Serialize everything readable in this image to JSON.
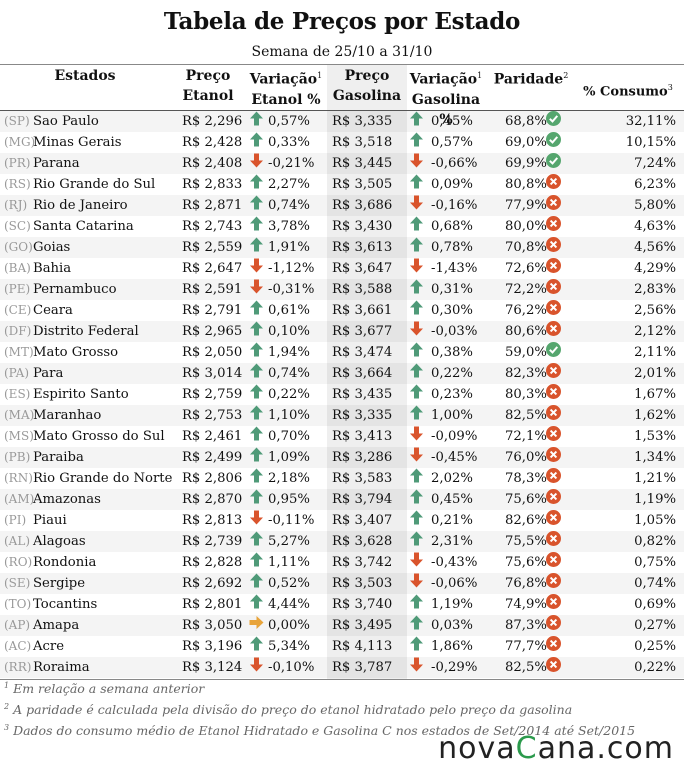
{
  "title": "Tabela de Preços por Estado",
  "subtitle": "Semana de 25/10 a 31/10",
  "headers": {
    "estados": "Estados",
    "preco_etanol_1": "Preço",
    "preco_etanol_2": "Etanol",
    "var_etanol_1": "Variação",
    "var_etanol_2": "Etanol %",
    "preco_gas_1": "Preço",
    "preco_gas_2": "Gasolina",
    "var_gas_1": "Variação",
    "var_gas_2": "Gasolina %",
    "paridade": "Paridade",
    "consumo": "% Consumo"
  },
  "rows": [
    {
      "uf": "(SP)",
      "estado": "Sao Paulo",
      "pe": "R$ 2,296",
      "ve": "0,57%",
      "de": "up",
      "pg": "R$ 3,335",
      "vg": "0,45%",
      "dg": "up",
      "par": "68,8%",
      "ok": true,
      "cons": "32,11%"
    },
    {
      "uf": "(MG)",
      "estado": "Minas Gerais",
      "pe": "R$ 2,428",
      "ve": "0,33%",
      "de": "up",
      "pg": "R$ 3,518",
      "vg": "0,57%",
      "dg": "up",
      "par": "69,0%",
      "ok": true,
      "cons": "10,15%"
    },
    {
      "uf": "(PR)",
      "estado": "Parana",
      "pe": "R$ 2,408",
      "ve": "-0,21%",
      "de": "down",
      "pg": "R$ 3,445",
      "vg": "-0,66%",
      "dg": "down",
      "par": "69,9%",
      "ok": true,
      "cons": "7,24%"
    },
    {
      "uf": "(RS)",
      "estado": "Rio Grande do Sul",
      "pe": "R$ 2,833",
      "ve": "2,27%",
      "de": "up",
      "pg": "R$ 3,505",
      "vg": "0,09%",
      "dg": "up",
      "par": "80,8%",
      "ok": false,
      "cons": "6,23%"
    },
    {
      "uf": "(RJ)",
      "estado": "Rio de Janeiro",
      "pe": "R$ 2,871",
      "ve": "0,74%",
      "de": "up",
      "pg": "R$ 3,686",
      "vg": "-0,16%",
      "dg": "down",
      "par": "77,9%",
      "ok": false,
      "cons": "5,80%"
    },
    {
      "uf": "(SC)",
      "estado": "Santa Catarina",
      "pe": "R$ 2,743",
      "ve": "3,78%",
      "de": "up",
      "pg": "R$ 3,430",
      "vg": "0,68%",
      "dg": "up",
      "par": "80,0%",
      "ok": false,
      "cons": "4,63%"
    },
    {
      "uf": "(GO)",
      "estado": "Goias",
      "pe": "R$ 2,559",
      "ve": "1,91%",
      "de": "up",
      "pg": "R$ 3,613",
      "vg": "0,78%",
      "dg": "up",
      "par": "70,8%",
      "ok": false,
      "cons": "4,56%"
    },
    {
      "uf": "(BA)",
      "estado": "Bahia",
      "pe": "R$ 2,647",
      "ve": "-1,12%",
      "de": "down",
      "pg": "R$ 3,647",
      "vg": "-1,43%",
      "dg": "down",
      "par": "72,6%",
      "ok": false,
      "cons": "4,29%"
    },
    {
      "uf": "(PE)",
      "estado": "Pernambuco",
      "pe": "R$ 2,591",
      "ve": "-0,31%",
      "de": "down",
      "pg": "R$ 3,588",
      "vg": "0,31%",
      "dg": "up",
      "par": "72,2%",
      "ok": false,
      "cons": "2,83%"
    },
    {
      "uf": "(CE)",
      "estado": "Ceara",
      "pe": "R$ 2,791",
      "ve": "0,61%",
      "de": "up",
      "pg": "R$ 3,661",
      "vg": "0,30%",
      "dg": "up",
      "par": "76,2%",
      "ok": false,
      "cons": "2,56%"
    },
    {
      "uf": "(DF)",
      "estado": "Distrito Federal",
      "pe": "R$ 2,965",
      "ve": "0,10%",
      "de": "up",
      "pg": "R$ 3,677",
      "vg": "-0,03%",
      "dg": "down",
      "par": "80,6%",
      "ok": false,
      "cons": "2,12%"
    },
    {
      "uf": "(MT)",
      "estado": "Mato Grosso",
      "pe": "R$ 2,050",
      "ve": "1,94%",
      "de": "up",
      "pg": "R$ 3,474",
      "vg": "0,38%",
      "dg": "up",
      "par": "59,0%",
      "ok": true,
      "cons": "2,11%"
    },
    {
      "uf": "(PA)",
      "estado": "Para",
      "pe": "R$ 3,014",
      "ve": "0,74%",
      "de": "up",
      "pg": "R$ 3,664",
      "vg": "0,22%",
      "dg": "up",
      "par": "82,3%",
      "ok": false,
      "cons": "2,01%"
    },
    {
      "uf": "(ES)",
      "estado": "Espirito Santo",
      "pe": "R$ 2,759",
      "ve": "0,22%",
      "de": "up",
      "pg": "R$ 3,435",
      "vg": "0,23%",
      "dg": "up",
      "par": "80,3%",
      "ok": false,
      "cons": "1,67%"
    },
    {
      "uf": "(MA)",
      "estado": "Maranhao",
      "pe": "R$ 2,753",
      "ve": "1,10%",
      "de": "up",
      "pg": "R$ 3,335",
      "vg": "1,00%",
      "dg": "up",
      "par": "82,5%",
      "ok": false,
      "cons": "1,62%"
    },
    {
      "uf": "(MS)",
      "estado": "Mato Grosso do Sul",
      "pe": "R$ 2,461",
      "ve": "0,70%",
      "de": "up",
      "pg": "R$ 3,413",
      "vg": "-0,09%",
      "dg": "down",
      "par": "72,1%",
      "ok": false,
      "cons": "1,53%"
    },
    {
      "uf": "(PB)",
      "estado": "Paraiba",
      "pe": "R$ 2,499",
      "ve": "1,09%",
      "de": "up",
      "pg": "R$ 3,286",
      "vg": "-0,45%",
      "dg": "down",
      "par": "76,0%",
      "ok": false,
      "cons": "1,34%"
    },
    {
      "uf": "(RN)",
      "estado": "Rio Grande do Norte",
      "pe": "R$ 2,806",
      "ve": "2,18%",
      "de": "up",
      "pg": "R$ 3,583",
      "vg": "2,02%",
      "dg": "up",
      "par": "78,3%",
      "ok": false,
      "cons": "1,21%"
    },
    {
      "uf": "(AM)",
      "estado": "Amazonas",
      "pe": "R$ 2,870",
      "ve": "0,95%",
      "de": "up",
      "pg": "R$ 3,794",
      "vg": "0,45%",
      "dg": "up",
      "par": "75,6%",
      "ok": false,
      "cons": "1,19%"
    },
    {
      "uf": "(PI)",
      "estado": "Piaui",
      "pe": "R$ 2,813",
      "ve": "-0,11%",
      "de": "down",
      "pg": "R$ 3,407",
      "vg": "0,21%",
      "dg": "up",
      "par": "82,6%",
      "ok": false,
      "cons": "1,05%"
    },
    {
      "uf": "(AL)",
      "estado": "Alagoas",
      "pe": "R$ 2,739",
      "ve": "5,27%",
      "de": "up",
      "pg": "R$ 3,628",
      "vg": "2,31%",
      "dg": "up",
      "par": "75,5%",
      "ok": false,
      "cons": "0,82%"
    },
    {
      "uf": "(RO)",
      "estado": "Rondonia",
      "pe": "R$ 2,828",
      "ve": "1,11%",
      "de": "up",
      "pg": "R$ 3,742",
      "vg": "-0,43%",
      "dg": "down",
      "par": "75,6%",
      "ok": false,
      "cons": "0,75%"
    },
    {
      "uf": "(SE)",
      "estado": "Sergipe",
      "pe": "R$ 2,692",
      "ve": "0,52%",
      "de": "up",
      "pg": "R$ 3,503",
      "vg": "-0,06%",
      "dg": "down",
      "par": "76,8%",
      "ok": false,
      "cons": "0,74%"
    },
    {
      "uf": "(TO)",
      "estado": "Tocantins",
      "pe": "R$ 2,801",
      "ve": "4,44%",
      "de": "up",
      "pg": "R$ 3,740",
      "vg": "1,19%",
      "dg": "up",
      "par": "74,9%",
      "ok": false,
      "cons": "0,69%"
    },
    {
      "uf": "(AP)",
      "estado": "Amapa",
      "pe": "R$ 3,050",
      "ve": "0,00%",
      "de": "flat",
      "pg": "R$ 3,495",
      "vg": "0,03%",
      "dg": "up",
      "par": "87,3%",
      "ok": false,
      "cons": "0,27%"
    },
    {
      "uf": "(AC)",
      "estado": "Acre",
      "pe": "R$ 3,196",
      "ve": "5,34%",
      "de": "up",
      "pg": "R$ 4,113",
      "vg": "1,86%",
      "dg": "up",
      "par": "77,7%",
      "ok": false,
      "cons": "0,25%"
    },
    {
      "uf": "(RR)",
      "estado": "Roraima",
      "pe": "R$ 3,124",
      "ve": "-0,10%",
      "de": "down",
      "pg": "R$ 3,787",
      "vg": "-0,29%",
      "dg": "down",
      "par": "82,5%",
      "ok": false,
      "cons": "0,22%"
    }
  ],
  "notes": {
    "n1": "Em relação a semana anterior",
    "n2": "A paridade é calculada pela divisão do preço do etanol hidratado pelo preço da gasolina",
    "n3": "Dados do consumo médio de Etanol Hidratado e Gasolina C nos estados de Set/2014 até Set/2015"
  },
  "logo": {
    "a": "nova",
    "b": "C",
    "c": "ana.com"
  },
  "colors": {
    "up": "#4f9a78",
    "down": "#d9542c",
    "flat": "#e8a43a",
    "ok": "#55a66e",
    "bad": "#d9542c"
  }
}
